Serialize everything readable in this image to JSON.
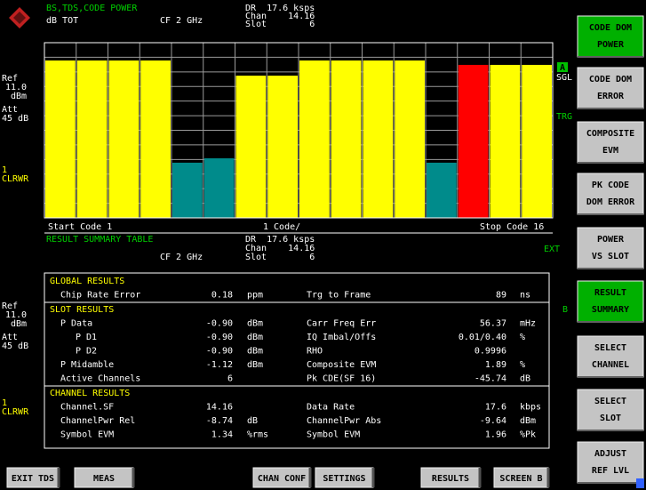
{
  "screen_a": {
    "title": "BS,TDS,CODE POWER",
    "unit": "dB TOT",
    "cf": "CF 2 GHz",
    "dr": "DR  17.6 ksps",
    "chan": "Chan    14.16",
    "slot": "Slot        6"
  },
  "side_a": {
    "ref": "Ref",
    "ref_level": "11.0",
    "ref_unit": "dBm",
    "att": "Att",
    "att_value": "45 dB",
    "trace": "1",
    "trace_mode": "CLRWR"
  },
  "chart_data": {
    "type": "bar",
    "categories": [
      null,
      null,
      null,
      null,
      null,
      null,
      null,
      null,
      null,
      null,
      null,
      null,
      null,
      null,
      null,
      null
    ],
    "values": [
      -6.1,
      -6.1,
      -6.1,
      -6.1,
      -41.1,
      -39.6,
      -11.3,
      -11.3,
      -6.1,
      -6.1,
      -6.1,
      -6.1,
      -41.1,
      -7.6,
      -7.6,
      -7.6
    ],
    "colors": [
      "#ffff00",
      "#ffff00",
      "#ffff00",
      "#ffff00",
      "#008b8b",
      "#008b8b",
      "#ffff00",
      "#ffff00",
      "#ffff00",
      "#ffff00",
      "#ffff00",
      "#ffff00",
      "#008b8b",
      "#ff0000",
      "#ffff00",
      "#ffff00"
    ],
    "ylim": [
      -60,
      0
    ],
    "yticks": [
      -60,
      -55,
      -50,
      -45,
      -40,
      -35,
      -30,
      -25,
      -20,
      -15,
      -10,
      -5,
      0
    ],
    "grid": true,
    "start_label": "Start Code 1",
    "scale_label": "1 Code/",
    "stop_label": "Stop Code 16"
  },
  "markers": {
    "a": "A",
    "sgl": "SGL",
    "trg": "TRG",
    "ext": "EXT",
    "b": "B"
  },
  "screen_b": {
    "title": "RESULT SUMMARY TABLE",
    "cf": "CF 2 GHz",
    "dr": "DR  17.6 ksps",
    "chan": "Chan    14.16",
    "slot": "Slot        6"
  },
  "side_b": {
    "ref": "Ref",
    "ref_level": "11.0",
    "ref_unit": "dBm",
    "att": "Att",
    "att_value": "45 dB",
    "trace": "1",
    "trace_mode": "CLRWR"
  },
  "table": {
    "sections": [
      {
        "title": "GLOBAL RESULTS",
        "rows": [
          [
            "Chip Rate Error",
            "0.18",
            "ppm",
            "Trg to Frame",
            "89",
            "ns"
          ]
        ]
      },
      {
        "title": "SLOT RESULTS",
        "rows": [
          [
            "P Data",
            "-0.90",
            "dBm",
            "Carr Freq Err",
            "56.37",
            "mHz"
          ],
          [
            "P D1",
            "-0.90",
            "dBm",
            "IQ Imbal/Offs",
            "0.01/0.40",
            "%"
          ],
          [
            "P D2",
            "-0.90",
            "dBm",
            "RHO",
            "0.9996",
            null
          ],
          [
            "P Midamble",
            "-1.12",
            "dBm",
            "Composite EVM",
            "1.89",
            "%"
          ],
          [
            "Active Channels",
            "6",
            null,
            "Pk CDE(SF 16)",
            "-45.74",
            "dB"
          ]
        ]
      },
      {
        "title": "CHANNEL RESULTS",
        "rows": [
          [
            "Channel.SF",
            "14.16",
            null,
            "Data Rate",
            "17.6",
            "kbps"
          ],
          [
            "ChannelPwr Rel",
            "-8.74",
            "dB",
            "ChannelPwr Abs",
            "-9.64",
            "dBm"
          ],
          [
            "Symbol EVM",
            "1.34",
            "%rms",
            "Symbol EVM",
            "1.96",
            "%Pk"
          ]
        ]
      }
    ]
  },
  "softkeys": [
    {
      "lines": [
        "CODE DOM",
        "POWER"
      ],
      "highlight": true
    },
    {
      "lines": [
        "CODE DOM",
        "ERROR"
      ],
      "highlight": false
    },
    {
      "lines": [
        "COMPOSITE",
        "EVM"
      ],
      "highlight": false
    },
    {
      "lines": [
        "PK CODE",
        "DOM ERROR"
      ],
      "highlight": false
    },
    {
      "lines": [
        "POWER",
        "VS SLOT"
      ],
      "highlight": false
    },
    {
      "lines": [
        "RESULT",
        "SUMMARY"
      ],
      "highlight": true
    },
    {
      "lines": [
        "SELECT",
        "CHANNEL"
      ],
      "highlight": false
    },
    {
      "lines": [
        "SELECT",
        "SLOT"
      ],
      "highlight": false
    },
    {
      "lines": [
        "ADJUST",
        "REF LVL"
      ],
      "highlight": false
    }
  ],
  "hotkeys": [
    "EXIT TDS",
    "MEAS",
    "CHAN CONF",
    "SETTINGS",
    "RESULTS",
    "SCREEN B"
  ]
}
